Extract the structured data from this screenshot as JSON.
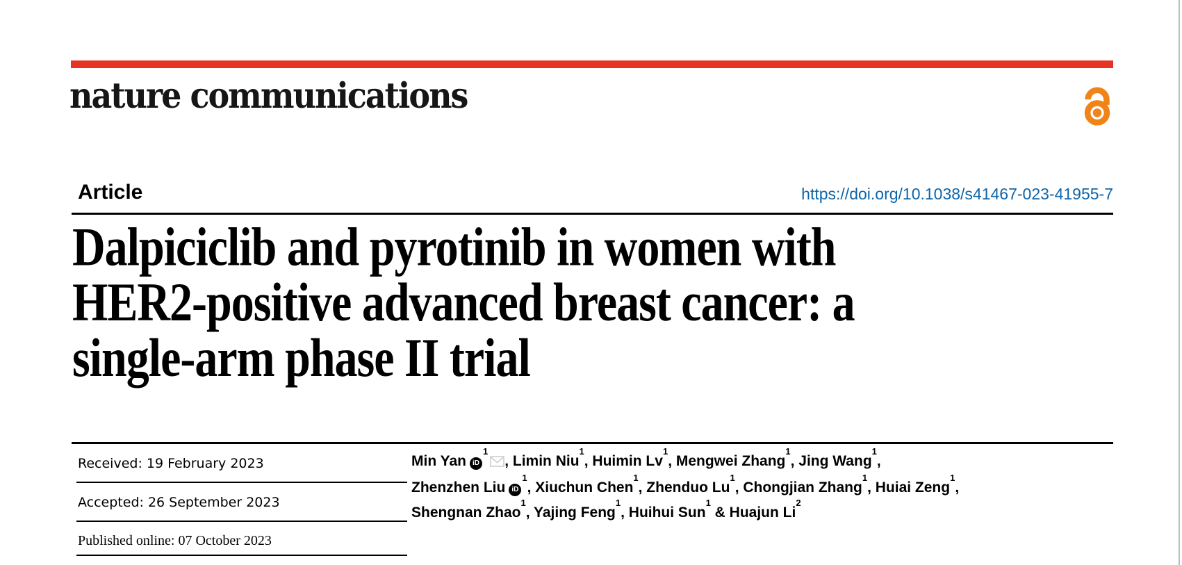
{
  "journal": {
    "name": "nature communications"
  },
  "article": {
    "kind_label": "Article",
    "doi": "https://doi.org/10.1038/s41467-023-41955-7",
    "title_lines": [
      "Dalpiciclib and pyrotinib in women with",
      "HER2-positive advanced breast cancer: a",
      "single-arm phase II trial"
    ]
  },
  "dates": {
    "rows": [
      {
        "text": "Received: 19 February 2023"
      },
      {
        "text": "Accepted: 26 September 2023"
      },
      {
        "text": "Published online: 07 October 2023"
      }
    ]
  },
  "authors": {
    "lines": [
      [
        {
          "t": "Min Yan"
        },
        {
          "icon": "orcid"
        },
        {
          "sup": "1"
        },
        {
          "icon": "mail"
        },
        {
          "t": ", Limin Niu"
        },
        {
          "sup": "1"
        },
        {
          "t": ", Huimin Lv"
        },
        {
          "sup": "1"
        },
        {
          "t": ", Mengwei Zhang"
        },
        {
          "sup": "1"
        },
        {
          "t": ", Jing Wang"
        },
        {
          "sup": "1"
        },
        {
          "t": ","
        }
      ],
      [
        {
          "t": "Zhenzhen Liu"
        },
        {
          "icon": "orcid"
        },
        {
          "sup": "1"
        },
        {
          "t": ", Xiuchun Chen"
        },
        {
          "sup": "1"
        },
        {
          "t": ", Zhenduo Lu"
        },
        {
          "sup": "1"
        },
        {
          "t": ", Chongjian Zhang"
        },
        {
          "sup": "1"
        },
        {
          "t": ", Huiai Zeng"
        },
        {
          "sup": "1"
        },
        {
          "t": ","
        }
      ],
      [
        {
          "t": "Shengnan Zhao"
        },
        {
          "sup": "1"
        },
        {
          "t": ", Yajing Feng"
        },
        {
          "sup": "1"
        },
        {
          "t": ", Huihui Sun"
        },
        {
          "sup": "1"
        },
        {
          "t": " & Huajun Li"
        },
        {
          "sup": "2"
        }
      ]
    ]
  },
  "icons": {
    "orcid_text": "iD",
    "open_access": "open-access-padlock",
    "mail": "envelope"
  },
  "colors": {
    "accent_red": "#e63323",
    "link_blue": "#0e65a8",
    "oa_orange": "#f08418",
    "orcid_bg": "#000000",
    "mail_gray": "#c9ced3",
    "edge_gray": "#b9bdc1"
  }
}
